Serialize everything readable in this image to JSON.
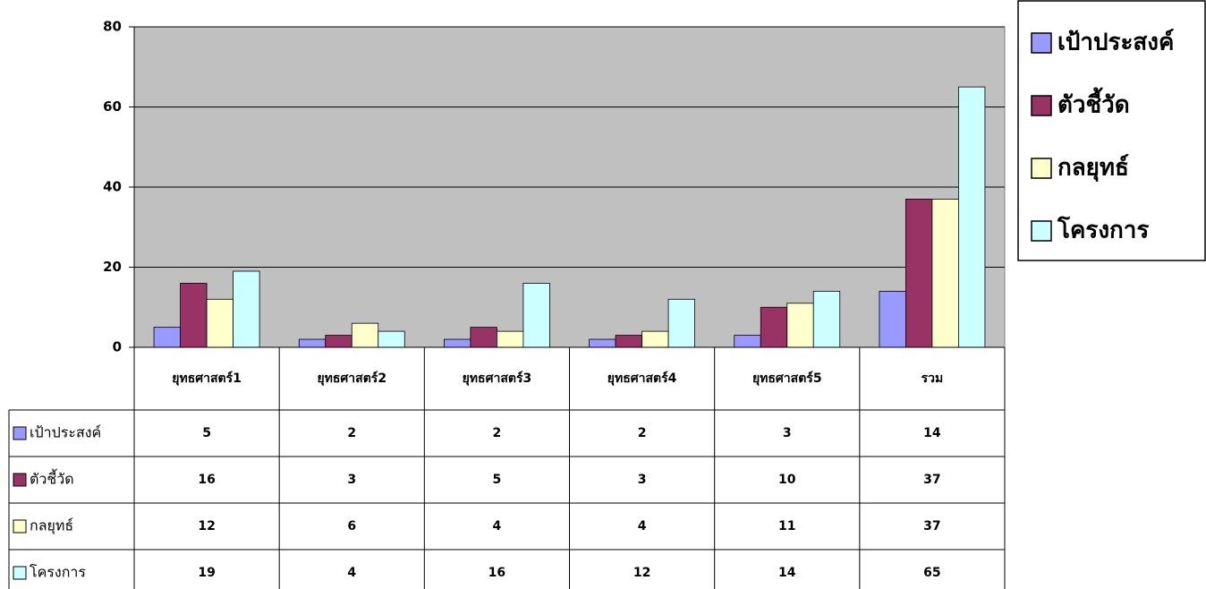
{
  "chart_data": {
    "type": "bar",
    "categories": [
      "ยุทธศาสตร์1",
      "ยุทธศาสตร์2",
      "ยุทธศาสตร์3",
      "ยุทธศาสตร์4",
      "ยุทธศาสตร์5",
      "รวม"
    ],
    "series": [
      {
        "name": "เป้าประสงค์",
        "color": "#9999ff",
        "values": [
          5,
          2,
          2,
          2,
          3,
          14
        ]
      },
      {
        "name": "ตัวชี้วัด",
        "color": "#993366",
        "values": [
          16,
          3,
          5,
          3,
          10,
          37
        ]
      },
      {
        "name": "กลยุทธ์",
        "color": "#ffffcc",
        "values": [
          12,
          6,
          4,
          4,
          11,
          37
        ]
      },
      {
        "name": "โครงการ",
        "color": "#ccffff",
        "values": [
          19,
          4,
          16,
          12,
          14,
          65
        ]
      }
    ],
    "ylim": [
      0,
      80
    ],
    "yticks": [
      0,
      20,
      40,
      60,
      80
    ],
    "grid": true,
    "legend": "right",
    "plot_background": "#c0c0c0"
  }
}
